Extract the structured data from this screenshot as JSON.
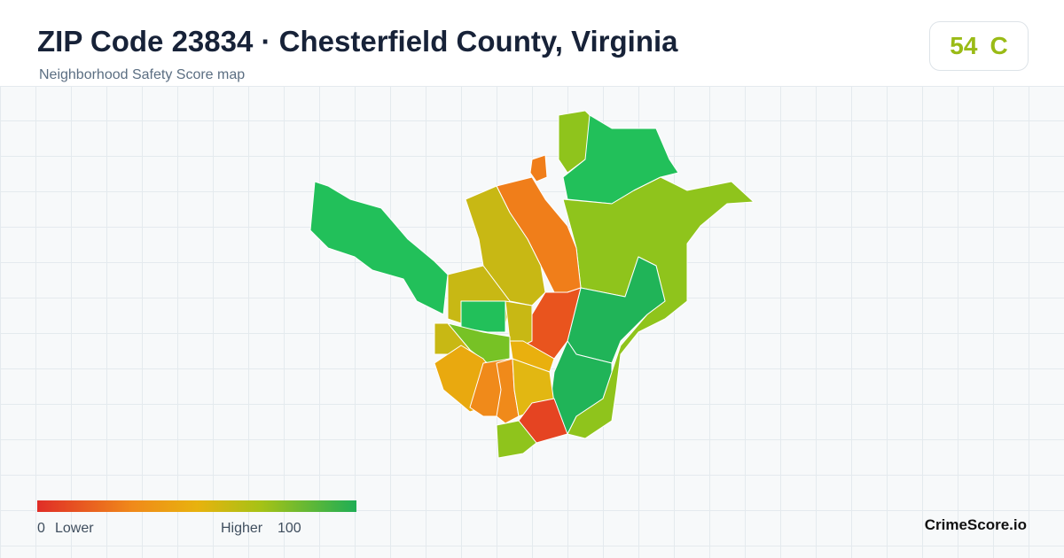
{
  "header": {
    "title": "ZIP Code 23834 · Chesterfield County, Virginia",
    "subtitle": "Neighborhood Safety Score map"
  },
  "score_badge": {
    "score": 54,
    "grade": "C"
  },
  "legend": {
    "min": 0,
    "min_label": "Lower",
    "max_label": "Higher",
    "max": 100
  },
  "footer": {
    "brand": "CrimeScore.io"
  }
}
